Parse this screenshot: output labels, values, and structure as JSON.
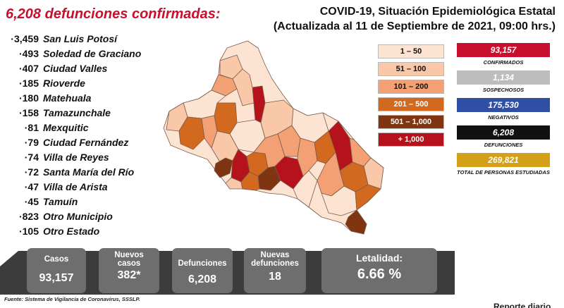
{
  "headline": "6,208 defunciones confirmadas:",
  "report": {
    "title_line1": "COVID-19, Situación Epidemiológica Estatal",
    "title_line2": "(Actualizada al 11 de Septiembre de 2021, 09:00 hrs.)"
  },
  "municipalities": [
    {
      "count": "3,459",
      "name": "San Luis Potosí"
    },
    {
      "count": "493",
      "name": "Soledad de Graciano"
    },
    {
      "count": "407",
      "name": "Ciudad Valles"
    },
    {
      "count": "185",
      "name": "Rioverde"
    },
    {
      "count": "180",
      "name": "Matehuala"
    },
    {
      "count": "158",
      "name": "Tamazunchale"
    },
    {
      "count": "81",
      "name": "Mexquitic"
    },
    {
      "count": "79",
      "name": "Ciudad Fernández"
    },
    {
      "count": "74",
      "name": "Villa de Reyes"
    },
    {
      "count": "72",
      "name": "Santa María del Río"
    },
    {
      "count": "47",
      "name": "Villa de Arista"
    },
    {
      "count": "45",
      "name": "Tamuín"
    },
    {
      "count": "823",
      "name": "Otro Municipio"
    },
    {
      "count": "105",
      "name": "Otro Estado"
    }
  ],
  "legend": [
    {
      "label": "1 – 50",
      "color": "#fde3d2",
      "text_color": "#111111"
    },
    {
      "label": "51 – 100",
      "color": "#f8c8a8",
      "text_color": "#111111"
    },
    {
      "label": "101 – 200",
      "color": "#f2a074",
      "text_color": "#111111"
    },
    {
      "label": "201 – 500",
      "color": "#d3691e",
      "text_color": "#ffffff"
    },
    {
      "label": "501 – 1,000",
      "color": "#7f3511",
      "text_color": "#ffffff"
    },
    {
      "label": "+ 1,000",
      "color": "#b5121b",
      "text_color": "#ffffff"
    }
  ],
  "stats": [
    {
      "value": "93,157",
      "label": "CONFIRMADOS",
      "color": "#c8102e"
    },
    {
      "value": "1,134",
      "label": "SOSPECHOSOS",
      "color": "#bdbdbd"
    },
    {
      "value": "175,530",
      "label": "NEGATIVOS",
      "color": "#2e4fa3"
    },
    {
      "value": "6,208",
      "label": "DEFUNCIONES",
      "color": "#111111"
    },
    {
      "value": "269,821",
      "label": "TOTAL DE PERSONAS ESTUDIADAS",
      "color": "#d4a017"
    }
  ],
  "summary": {
    "cases_label": "Casos",
    "cases_value": "93,157",
    "new_cases_label": "Nuevos casos",
    "new_cases_value": "382*",
    "deaths_label": "Defunciones",
    "deaths_value": "6,208",
    "new_deaths_label": "Nuevas defunciones",
    "new_deaths_value": "18",
    "lethality_label": "Letalidad:",
    "lethality_value": "6.66 %"
  },
  "footer": "Fuente: Sistema de Vigilancia de Coronavirus, SSSLP.",
  "report_tag": "Reporte diario"
}
